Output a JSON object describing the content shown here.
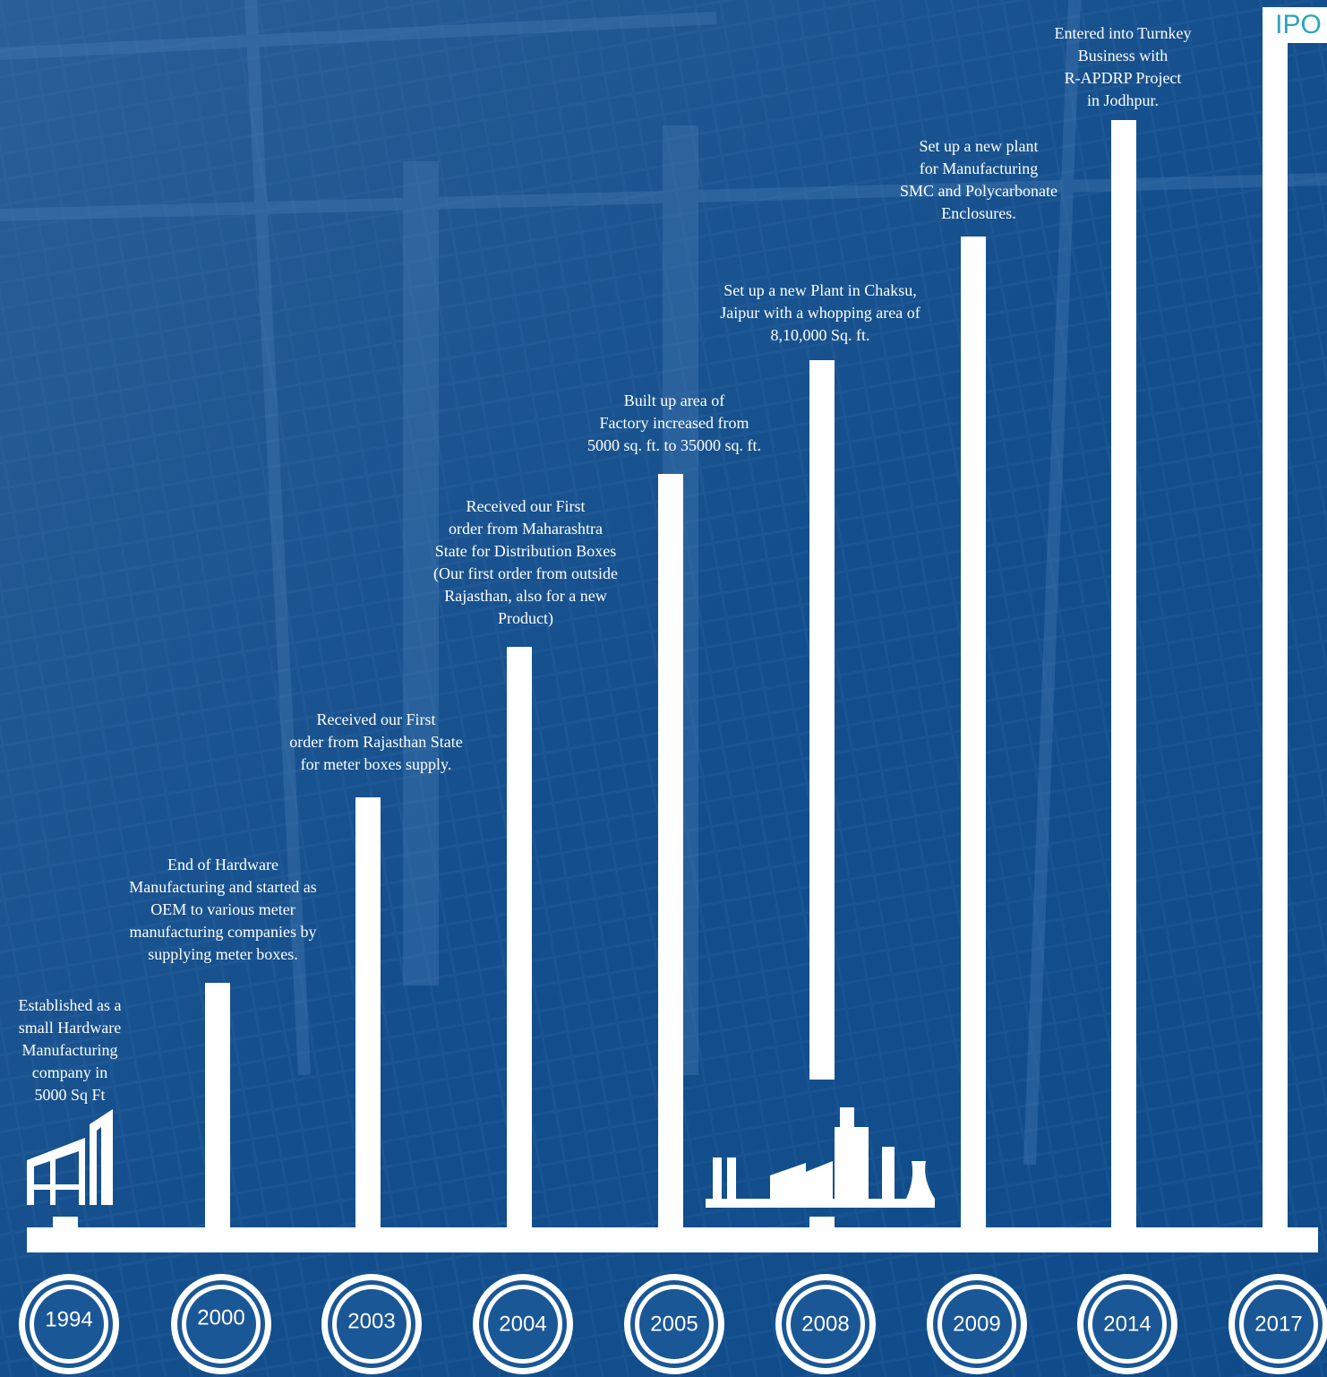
{
  "milestones": [
    {
      "year": "1994",
      "lines": [
        "Established as a",
        "small Hardware",
        "Manufacturing",
        "company in",
        "5000 Sq Ft"
      ]
    },
    {
      "year": "2000",
      "lines": [
        "End of Hardware",
        "Manufacturing and started as",
        "OEM to various meter",
        "manufacturing  companies by",
        "supplying meter boxes."
      ]
    },
    {
      "year": "2003",
      "lines": [
        "Received our First",
        "order from  Rajasthan State",
        "for meter boxes supply."
      ]
    },
    {
      "year": "2004",
      "lines": [
        "Received our First",
        "order from  Maharashtra",
        "State for Distribution Boxes",
        "(Our first order from  outside",
        "Rajasthan, also for a new",
        "Product)"
      ]
    },
    {
      "year": "2005",
      "lines": [
        "Built up area of",
        "Factory increased from",
        "5000 sq. ft.  to 35000 sq. ft."
      ]
    },
    {
      "year": "2008",
      "lines": [
        "Set up a new Plant  in Chaksu,",
        "Jaipur with a whopping area of",
        "8,10,000 Sq. ft."
      ]
    },
    {
      "year": "2009",
      "lines": [
        "Set up a new plant",
        "for Manufacturing",
        "SMC and Polycarbonate",
        "Enclosures."
      ]
    },
    {
      "year": "2014",
      "lines": [
        "Entered into Turnkey",
        "Business with",
        "R-APDRP Project",
        "in Jodhpur."
      ]
    },
    {
      "year": "2017",
      "lines": [],
      "tag": "IPO"
    }
  ]
}
